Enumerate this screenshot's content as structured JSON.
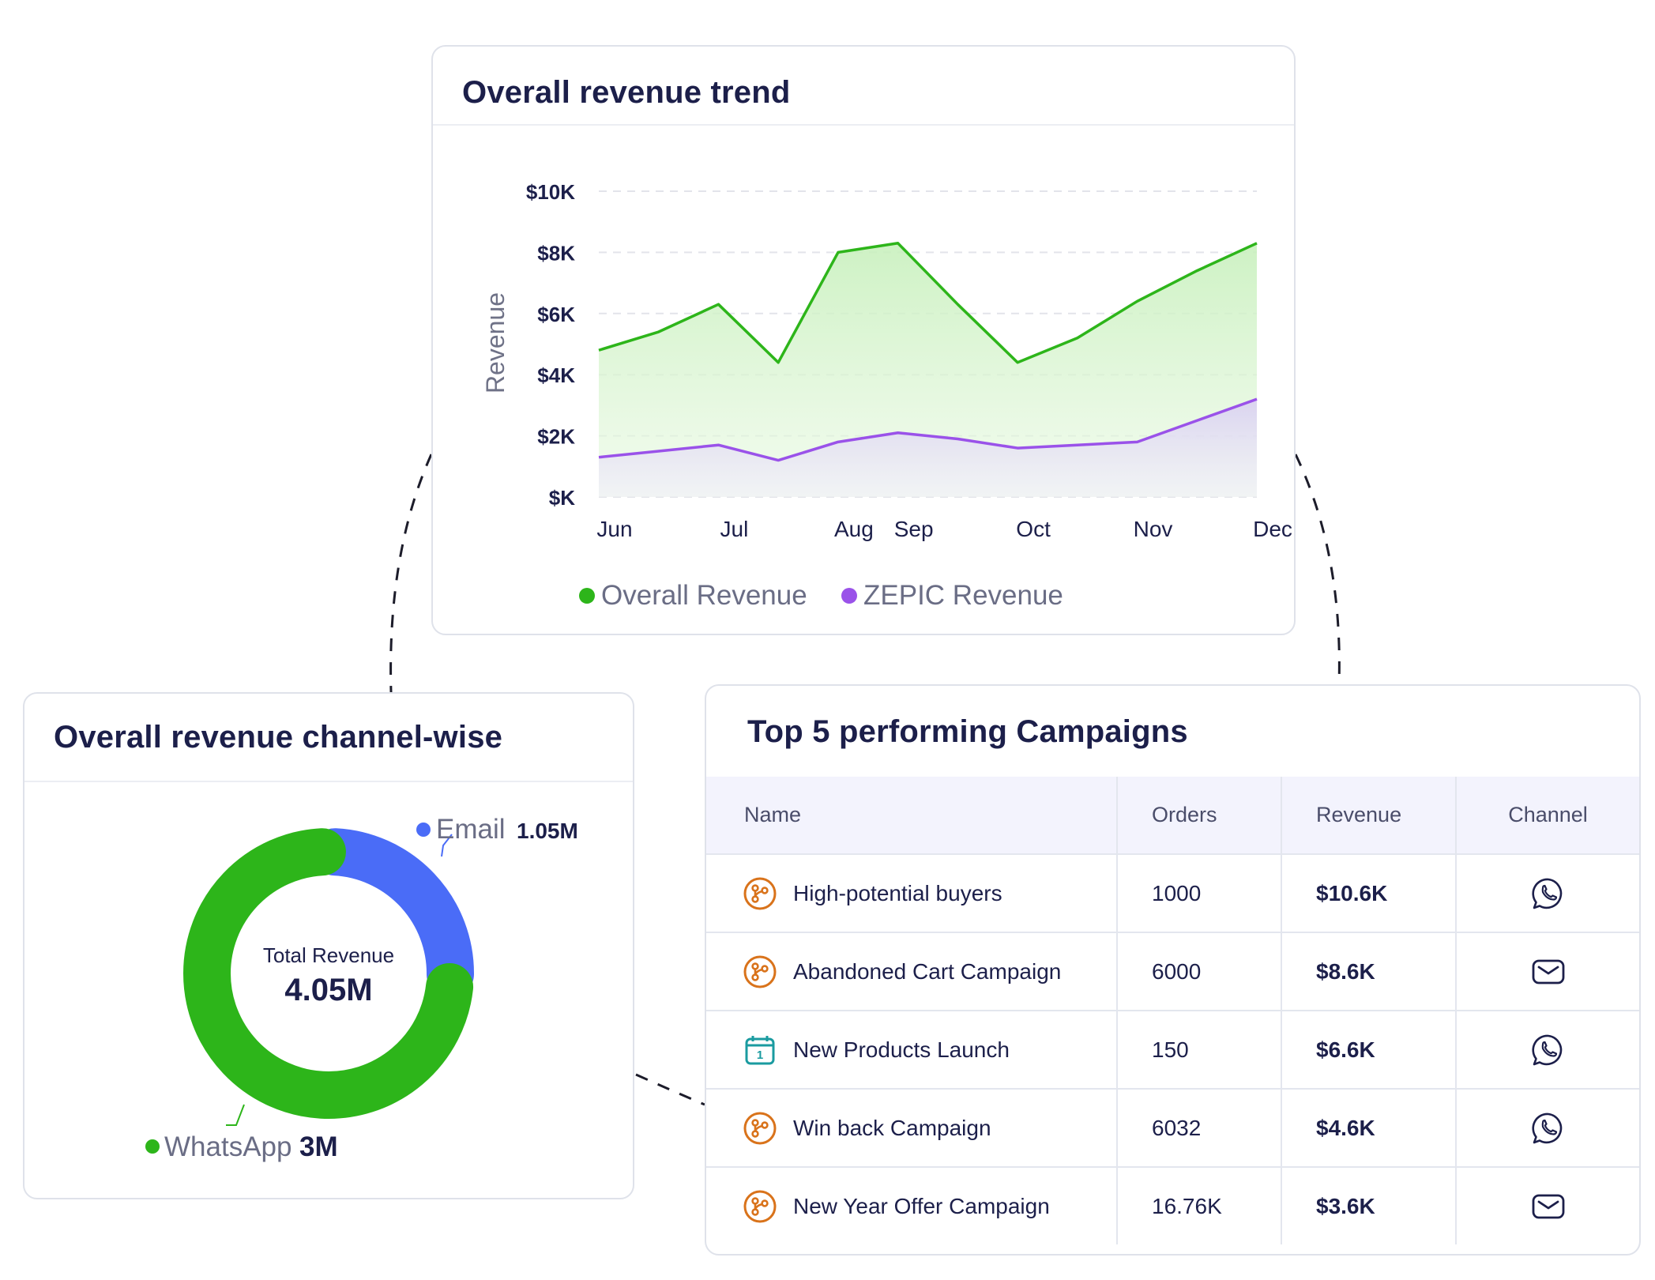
{
  "trend": {
    "title": "Overall revenue trend"
  },
  "channel": {
    "title": "Overall revenue channel-wise",
    "center_label": "Total Revenue",
    "center_value": "4.05M"
  },
  "campaigns": {
    "title": "Top 5 performing Campaigns",
    "columns": [
      "Name",
      "Orders",
      "Revenue",
      "Channel"
    ],
    "rows": [
      {
        "name": "High-potential buyers",
        "orders": "1000",
        "revenue": "$10.6K",
        "type_icon": "journey-icon",
        "channel_icon": "whatsapp-icon"
      },
      {
        "name": "Abandoned Cart Campaign",
        "orders": "6000",
        "revenue": "$8.6K",
        "type_icon": "journey-icon",
        "channel_icon": "email-icon"
      },
      {
        "name": "New Products Launch",
        "orders": "150",
        "revenue": "$6.6K",
        "type_icon": "calendar-icon",
        "channel_icon": "whatsapp-icon"
      },
      {
        "name": "Win back Campaign",
        "orders": "6032",
        "revenue": "$4.6K",
        "type_icon": "journey-icon",
        "channel_icon": "whatsapp-icon"
      },
      {
        "name": "New Year Offer Campaign",
        "orders": "16.76K",
        "revenue": "$3.6K",
        "type_icon": "journey-icon",
        "channel_icon": "email-icon"
      }
    ]
  },
  "colors": {
    "overall": "#2db51a",
    "zepic": "#9a52e9",
    "email": "#4a6cf7",
    "whatsapp": "#2db51a",
    "journey_icon": "#d9731b",
    "calendar_icon": "#1a9ba0"
  },
  "chart_data": [
    {
      "type": "area",
      "title": "Overall revenue trend",
      "ylabel": "Revenue",
      "xlabel": "",
      "categories": [
        "Jun",
        "Jul",
        "Aug",
        "Sep",
        "Oct",
        "Nov",
        "Dec"
      ],
      "yticks": [
        "$K",
        "$2K",
        "$4K",
        "$6K",
        "$8K",
        "$10K"
      ],
      "ylim": [
        0,
        10000
      ],
      "grid": true,
      "legend_position": "bottom",
      "series": [
        {
          "name": "Overall Revenue",
          "x": [
            0,
            1,
            2,
            3,
            4,
            5,
            6,
            7,
            8,
            9,
            10,
            11
          ],
          "values": [
            4800,
            5400,
            6300,
            4400,
            8000,
            8300,
            6300,
            4400,
            5200,
            6400,
            7400,
            8300
          ]
        },
        {
          "name": "ZEPIC Revenue",
          "x": [
            0,
            1,
            2,
            3,
            4,
            5,
            6,
            7,
            8,
            9,
            10,
            11
          ],
          "values": [
            1300,
            1500,
            1700,
            1200,
            1800,
            2100,
            1900,
            1600,
            1700,
            1800,
            2500,
            3200
          ]
        }
      ],
      "x_label_positions": [
        0,
        2,
        4,
        5,
        7,
        9,
        11
      ]
    },
    {
      "type": "pie",
      "title": "Overall revenue channel-wise",
      "center_label": "Total Revenue",
      "center_value": "4.05M",
      "slices": [
        {
          "name": "Email",
          "label": "1.05M",
          "value": 1.05
        },
        {
          "name": "WhatsApp",
          "label": "3M",
          "value": 3.0
        }
      ]
    }
  ]
}
